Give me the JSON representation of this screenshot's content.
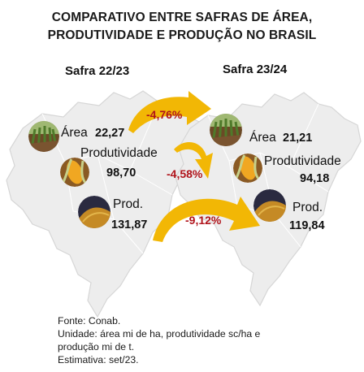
{
  "title": {
    "line1": "COMPARATIVO ENTRE SAFRAS DE ÁREA,",
    "line2": "PRODUTIVIDADE E PRODUÇÃO NO BRASIL"
  },
  "left": {
    "safra": "Safra 22/23",
    "area_label": "Área",
    "area_value": "22,27",
    "prod_label": "Produtividade",
    "prod_value": "98,70",
    "production_label": "Prod.",
    "production_value": "131,87"
  },
  "right": {
    "safra": "Safra 23/24",
    "area_label": "Área",
    "area_value": "21,21",
    "prod_label": "Produtividade",
    "prod_value": "94,18",
    "production_label": "Prod.",
    "production_value": "119,84"
  },
  "changes": {
    "area": "-4,76%",
    "productivity": "-4,58%",
    "production": "-9,12%"
  },
  "footer": {
    "source": "Fonte: Conab.",
    "unit_line1": "Unidade: área mi de ha, produtividade sc/ha e",
    "unit_line2": "produção mi de t.",
    "estimate": "Estimativa: set/23."
  },
  "colors": {
    "arrow": "#f2b705",
    "percent": "#b0141b",
    "map_fill": "#ededed",
    "map_stroke": "#d6d6d6"
  },
  "icons": {
    "area": "crop-field-icon",
    "productivity": "corn-cob-icon",
    "production": "grain-pile-icon"
  }
}
